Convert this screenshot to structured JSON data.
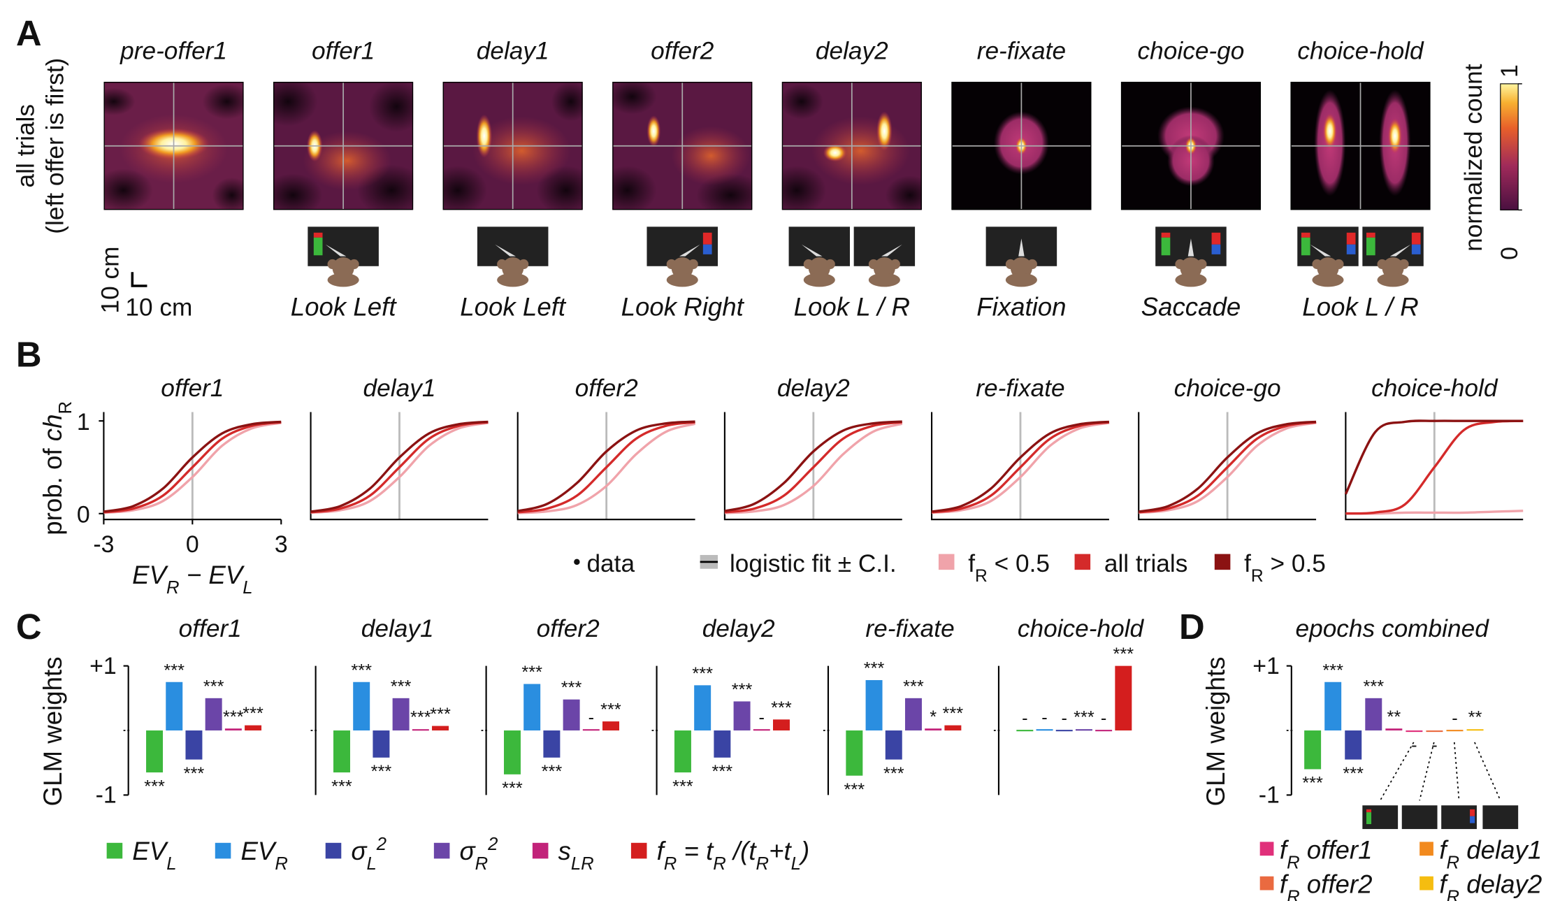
{
  "panel_labels": [
    "A",
    "B",
    "C",
    "D"
  ],
  "heatmaps": {
    "ylabel": [
      "all trials",
      "(left offer is first)"
    ],
    "scale_bar": [
      "10 cm",
      "10 cm"
    ],
    "colorbar": {
      "label": "normalized count",
      "ticks": [
        0,
        1
      ]
    },
    "epochs": [
      {
        "title": "pre-offer1"
      },
      {
        "title": "offer1",
        "caption": "Look Left"
      },
      {
        "title": "delay1",
        "caption": "Look Left"
      },
      {
        "title": "offer2",
        "caption": "Look Right"
      },
      {
        "title": "delay2",
        "caption": "Look L / R"
      },
      {
        "title": "re-fixate",
        "caption": "Fixation"
      },
      {
        "title": "choice-go",
        "caption": "Saccade"
      },
      {
        "title": "choice-hold",
        "caption": "Look L / R"
      }
    ]
  },
  "legend_B": [
    {
      "label": "data"
    },
    {
      "label": "logistic fit ± C.I."
    },
    {
      "label": [
        "f",
        {
          "sub": "R"
        },
        " < 0.5"
      ],
      "color": "#f0a3aa"
    },
    {
      "label": "all trials",
      "color": "#d42a2a"
    },
    {
      "label": [
        "f",
        {
          "sub": "R"
        },
        " > 0.5"
      ],
      "color": "#8b1212"
    }
  ],
  "legend_C": [
    {
      "label": [
        "EV",
        {
          "sub": "L"
        }
      ],
      "color": "#3cb83c"
    },
    {
      "label": [
        "EV",
        {
          "sub": "R"
        }
      ],
      "color": "#2a8ee0"
    },
    {
      "label": [
        "σ",
        {
          "sub": "L"
        },
        {
          "sup": "2"
        }
      ],
      "color": "#3a44a4"
    },
    {
      "label": [
        "σ",
        {
          "sub": "R"
        },
        {
          "sup": "2"
        }
      ],
      "color": "#6b45a8"
    },
    {
      "label": [
        "s",
        {
          "sub": "LR"
        }
      ],
      "color": "#c2237a"
    },
    {
      "label": [
        "f",
        {
          "sub": "R"
        },
        " = t",
        {
          "sub": "R"
        },
        " /(t",
        {
          "sub": "R"
        },
        "+t",
        {
          "sub": "L"
        },
        ")"
      ],
      "color": "#d41e1e"
    }
  ],
  "legend_D": [
    {
      "label": [
        "f",
        {
          "sub": "R"
        },
        " offer1"
      ],
      "color": "#e0307a"
    },
    {
      "label": [
        "f",
        {
          "sub": "R"
        },
        " delay1"
      ],
      "color": "#f28a1e"
    },
    {
      "label": [
        "f",
        {
          "sub": "R"
        },
        " offer2"
      ],
      "color": "#ea6a40"
    },
    {
      "label": [
        "f",
        {
          "sub": "R"
        },
        " delay2"
      ],
      "color": "#f5bd10"
    }
  ],
  "chart_data": [
    {
      "type": "line",
      "title": "offer1",
      "ylabel": [
        "prob. of ",
        {
          "it": "ch"
        },
        {
          "sub": "R"
        }
      ],
      "xlabel": [
        "EV",
        {
          "sub": "R"
        },
        " − EV",
        {
          "sub": "L"
        }
      ],
      "xlim": [
        -3,
        3
      ],
      "ylim": [
        0,
        1
      ],
      "xticks": [
        -3,
        0,
        3
      ],
      "yticks": [
        0,
        1
      ],
      "vline": 0,
      "x": [
        -3,
        -2,
        -1,
        0,
        1,
        2,
        3
      ],
      "series": [
        {
          "color": "#f0a3aa",
          "values": [
            0.009,
            0.036,
            0.135,
            0.394,
            0.731,
            0.919,
            0.979
          ]
        },
        {
          "color": "#d42a2a",
          "values": [
            0.014,
            0.054,
            0.193,
            0.5,
            0.807,
            0.946,
            0.986
          ]
        },
        {
          "color": "#8b1212",
          "values": [
            0.021,
            0.081,
            0.269,
            0.606,
            0.865,
            0.964,
            0.991
          ]
        }
      ]
    },
    {
      "type": "line",
      "title": "delay1",
      "xlim": [
        -3,
        3
      ],
      "ylim": [
        0,
        1
      ],
      "vline": 0,
      "x": [
        -3,
        -2,
        -1,
        0,
        1,
        2,
        3
      ],
      "series": [
        {
          "color": "#f0a3aa",
          "values": [
            0.009,
            0.036,
            0.135,
            0.394,
            0.731,
            0.919,
            0.979
          ]
        },
        {
          "color": "#d42a2a",
          "values": [
            0.014,
            0.054,
            0.193,
            0.5,
            0.807,
            0.946,
            0.986
          ]
        },
        {
          "color": "#8b1212",
          "values": [
            0.021,
            0.081,
            0.269,
            0.606,
            0.865,
            0.964,
            0.991
          ]
        }
      ]
    },
    {
      "type": "line",
      "title": "offer2",
      "xlim": [
        -3,
        3
      ],
      "ylim": [
        0,
        1
      ],
      "vline": 0,
      "x": [
        -3,
        -2,
        -1,
        0,
        1,
        2,
        3
      ],
      "series": [
        {
          "color": "#f0a3aa",
          "values": [
            0.006,
            0.024,
            0.092,
            0.298,
            0.639,
            0.881,
            0.969
          ]
        },
        {
          "color": "#d42a2a",
          "values": [
            0.014,
            0.054,
            0.193,
            0.5,
            0.807,
            0.946,
            0.986
          ]
        },
        {
          "color": "#8b1212",
          "values": [
            0.027,
            0.105,
            0.329,
            0.671,
            0.895,
            0.973,
            0.993
          ]
        }
      ]
    },
    {
      "type": "line",
      "title": "delay2",
      "xlim": [
        -3,
        3
      ],
      "ylim": [
        0,
        1
      ],
      "vline": 0,
      "x": [
        -3,
        -2,
        -1,
        0,
        1,
        2,
        3
      ],
      "series": [
        {
          "color": "#f0a3aa",
          "values": [
            0.006,
            0.024,
            0.092,
            0.298,
            0.639,
            0.881,
            0.969
          ]
        },
        {
          "color": "#d42a2a",
          "values": [
            0.014,
            0.054,
            0.193,
            0.5,
            0.807,
            0.946,
            0.986
          ]
        },
        {
          "color": "#8b1212",
          "values": [
            0.027,
            0.105,
            0.329,
            0.671,
            0.895,
            0.973,
            0.993
          ]
        }
      ]
    },
    {
      "type": "line",
      "title": "re-fixate",
      "xlim": [
        -3,
        3
      ],
      "ylim": [
        0,
        1
      ],
      "vline": 0,
      "x": [
        -3,
        -2,
        -1,
        0,
        1,
        2,
        3
      ],
      "series": [
        {
          "color": "#f0a3aa",
          "values": [
            0.009,
            0.036,
            0.135,
            0.394,
            0.731,
            0.919,
            0.979
          ]
        },
        {
          "color": "#d42a2a",
          "values": [
            0.014,
            0.054,
            0.193,
            0.5,
            0.807,
            0.946,
            0.986
          ]
        },
        {
          "color": "#8b1212",
          "values": [
            0.021,
            0.081,
            0.269,
            0.606,
            0.865,
            0.964,
            0.991
          ]
        }
      ]
    },
    {
      "type": "line",
      "title": "choice-go",
      "xlim": [
        -3,
        3
      ],
      "ylim": [
        0,
        1
      ],
      "vline": 0,
      "x": [
        -3,
        -2,
        -1,
        0,
        1,
        2,
        3
      ],
      "series": [
        {
          "color": "#f0a3aa",
          "values": [
            0.009,
            0.036,
            0.135,
            0.394,
            0.731,
            0.919,
            0.979
          ]
        },
        {
          "color": "#d42a2a",
          "values": [
            0.014,
            0.054,
            0.193,
            0.5,
            0.807,
            0.946,
            0.986
          ]
        },
        {
          "color": "#8b1212",
          "values": [
            0.021,
            0.081,
            0.269,
            0.606,
            0.865,
            0.964,
            0.991
          ]
        }
      ]
    },
    {
      "type": "line",
      "title": "choice-hold",
      "xlim": [
        -3,
        3
      ],
      "ylim": [
        0,
        1
      ],
      "vline": 0,
      "x": [
        -3,
        -2,
        -1,
        0,
        1,
        2,
        3
      ],
      "series": [
        {
          "color": "#f0a3aa",
          "values": [
            0,
            0,
            0.01,
            0.01,
            0.01,
            0.02,
            0.03
          ]
        },
        {
          "color": "#d42a2a",
          "values": [
            0.001,
            0.012,
            0.098,
            0.5,
            0.902,
            0.988,
            0.999
          ]
        },
        {
          "color": "#8b1212",
          "values": [
            0.21,
            0.88,
            0.99,
            1,
            1,
            1,
            1
          ]
        }
      ]
    },
    {
      "type": "bar",
      "title": "offer1",
      "ylabel": "GLM weights",
      "ylim": [
        -1,
        1
      ],
      "yticks": [
        -1,
        {
          "value": 1,
          "label": "+1"
        }
      ],
      "values": [
        -0.65,
        0.75,
        -0.45,
        0.5,
        0.03,
        0.08
      ],
      "annotations": [
        "***",
        "***",
        "***",
        "***",
        "***",
        "***"
      ]
    },
    {
      "type": "bar",
      "title": "delay1",
      "ylim": [
        -1,
        1
      ],
      "values": [
        -0.65,
        0.75,
        -0.42,
        0.5,
        0.02,
        0.07
      ],
      "annotations": [
        "***",
        "***",
        "***",
        "***",
        "***",
        "***"
      ]
    },
    {
      "type": "bar",
      "title": "offer2",
      "ylim": [
        -1,
        1
      ],
      "values": [
        -0.68,
        0.72,
        -0.42,
        0.48,
        0.02,
        0.14
      ],
      "annotations": [
        "***",
        "***",
        "***",
        "***",
        "-",
        "***"
      ]
    },
    {
      "type": "bar",
      "title": "delay2",
      "ylim": [
        -1,
        1
      ],
      "values": [
        -0.65,
        0.7,
        -0.42,
        0.45,
        0.02,
        0.17
      ],
      "annotations": [
        "***",
        "***",
        "***",
        "***",
        "-",
        "***"
      ]
    },
    {
      "type": "bar",
      "title": "re-fixate",
      "ylim": [
        -1,
        1
      ],
      "values": [
        -0.7,
        0.78,
        -0.45,
        0.5,
        0.03,
        0.08
      ],
      "annotations": [
        "***",
        "***",
        "***",
        "***",
        "*",
        "***"
      ]
    },
    {
      "type": "bar",
      "title": "choice-hold",
      "ylim": [
        -1,
        1
      ],
      "values": [
        0.01,
        0.02,
        0.01,
        0.02,
        0.01,
        1.0
      ],
      "annotations": [
        "-",
        "-",
        "-",
        "***",
        "-",
        "***"
      ]
    },
    {
      "type": "bar",
      "title": "epochs combined",
      "ylabel": "GLM weights",
      "ylim": [
        -1,
        1
      ],
      "yticks": [
        -1,
        {
          "value": 1,
          "label": "+1"
        }
      ],
      "values": [
        -0.6,
        0.75,
        -0.45,
        0.5,
        0.03,
        -0.01,
        -0.01,
        0.01,
        0.02
      ],
      "colors": [
        "#3cb83c",
        "#2a8ee0",
        "#3a44a4",
        "#6b45a8",
        "#c2237a",
        "#e0307a",
        "#ea6a40",
        "#f28a1e",
        "#f5bd10"
      ],
      "annotations": [
        "***",
        "***",
        "***",
        "***",
        "**",
        "-",
        "-",
        "-",
        "**"
      ]
    }
  ]
}
